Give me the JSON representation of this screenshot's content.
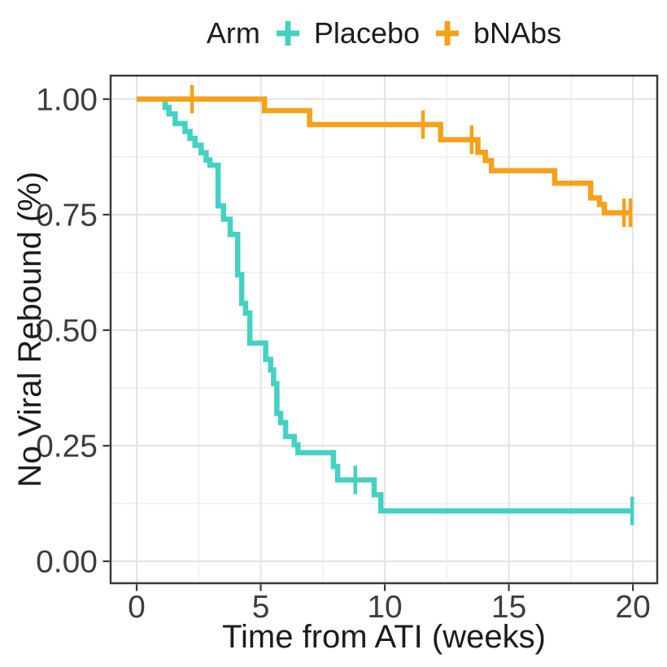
{
  "chart_data": {
    "type": "line",
    "variant": "kaplan_meier_step",
    "legend_title": "Arm",
    "legend_position": "top",
    "xlabel": "Time from ATI (weeks)",
    "ylabel": "No Viral Rebound (%)",
    "xlim": [
      -1.05,
      20.98
    ],
    "ylim": [
      -0.0475,
      1.0507
    ],
    "xticks": [
      0,
      5,
      10,
      15,
      20
    ],
    "xtick_labels": [
      "0",
      "5",
      "10",
      "15",
      "20"
    ],
    "yticks": [
      0,
      0.25,
      0.5,
      0.75,
      1
    ],
    "ytick_labels": [
      "0.00",
      "0.25",
      "0.50",
      "0.75",
      "1.00"
    ],
    "x_minor_gridlines": [
      2.5,
      7.5,
      12.5,
      17.5
    ],
    "y_minor_gridlines": [
      0.125,
      0.375,
      0.625,
      0.875
    ],
    "grid": "major+minor",
    "style": {
      "panel_background": "#ffffff",
      "grid_major_color": "#e3e3e3",
      "grid_minor_color": "#efefef",
      "axis_color": "#3a3a3a",
      "tick_label_color": "#3d3d3d",
      "title_color": "#1c1c1c"
    },
    "series": [
      {
        "name": "Placebo",
        "color": "#45d1c2",
        "end_x": 19.97,
        "steps": [
          [
            0,
            1.0
          ],
          [
            1.15,
            0.982
          ],
          [
            1.3,
            0.968
          ],
          [
            1.55,
            0.947
          ],
          [
            1.95,
            0.93
          ],
          [
            2.15,
            0.915
          ],
          [
            2.35,
            0.9
          ],
          [
            2.6,
            0.884
          ],
          [
            2.8,
            0.868
          ],
          [
            2.95,
            0.857
          ],
          [
            3.28,
            0.769
          ],
          [
            3.5,
            0.74
          ],
          [
            3.77,
            0.707
          ],
          [
            4.07,
            0.62
          ],
          [
            4.23,
            0.558
          ],
          [
            4.39,
            0.537
          ],
          [
            4.56,
            0.472
          ],
          [
            5.2,
            0.437
          ],
          [
            5.4,
            0.414
          ],
          [
            5.52,
            0.384
          ],
          [
            5.65,
            0.32
          ],
          [
            5.8,
            0.3
          ],
          [
            6.0,
            0.27
          ],
          [
            6.35,
            0.252
          ],
          [
            6.5,
            0.235
          ],
          [
            7.93,
            0.205
          ],
          [
            8.1,
            0.176
          ],
          [
            9.57,
            0.144
          ],
          [
            9.84,
            0.109
          ]
        ],
        "censor_marks": [
          [
            8.81,
            0.176
          ],
          [
            19.97,
            0.109
          ]
        ]
      },
      {
        "name": "bNAbs",
        "color": "#f6a11a",
        "end_x": 19.93,
        "steps": [
          [
            0,
            1.0
          ],
          [
            5.15,
            0.975
          ],
          [
            6.97,
            0.945
          ],
          [
            12.25,
            0.912
          ],
          [
            13.75,
            0.885
          ],
          [
            14.05,
            0.867
          ],
          [
            14.3,
            0.845
          ],
          [
            16.85,
            0.818
          ],
          [
            18.3,
            0.786
          ],
          [
            18.65,
            0.772
          ],
          [
            18.85,
            0.754
          ]
        ],
        "censor_marks": [
          [
            2.23,
            1.0
          ],
          [
            11.54,
            0.945
          ],
          [
            13.5,
            0.912
          ],
          [
            19.64,
            0.754
          ],
          [
            19.9,
            0.754
          ]
        ]
      }
    ]
  }
}
